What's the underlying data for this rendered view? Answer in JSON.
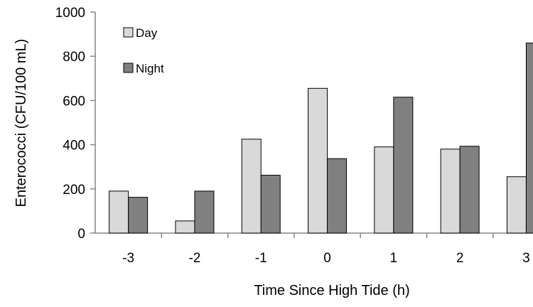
{
  "chart_data": {
    "type": "bar",
    "title": "",
    "xlabel": "Time Since High Tide (h)",
    "ylabel": "Enterococci (CFU/100 mL)",
    "categories": [
      "-3",
      "-2",
      "-1",
      "0",
      "1",
      "2",
      "3"
    ],
    "ylim": [
      0,
      1000
    ],
    "yticks": [
      0,
      200,
      400,
      600,
      800,
      1000
    ],
    "series": [
      {
        "name": "Day",
        "color": "#d9d9d9",
        "values": [
          190,
          55,
          425,
          655,
          390,
          380,
          255
        ]
      },
      {
        "name": "Night",
        "color": "#808080",
        "values": [
          162,
          190,
          262,
          337,
          615,
          393,
          860
        ]
      }
    ],
    "grid": false,
    "legend_position": "top-left"
  }
}
